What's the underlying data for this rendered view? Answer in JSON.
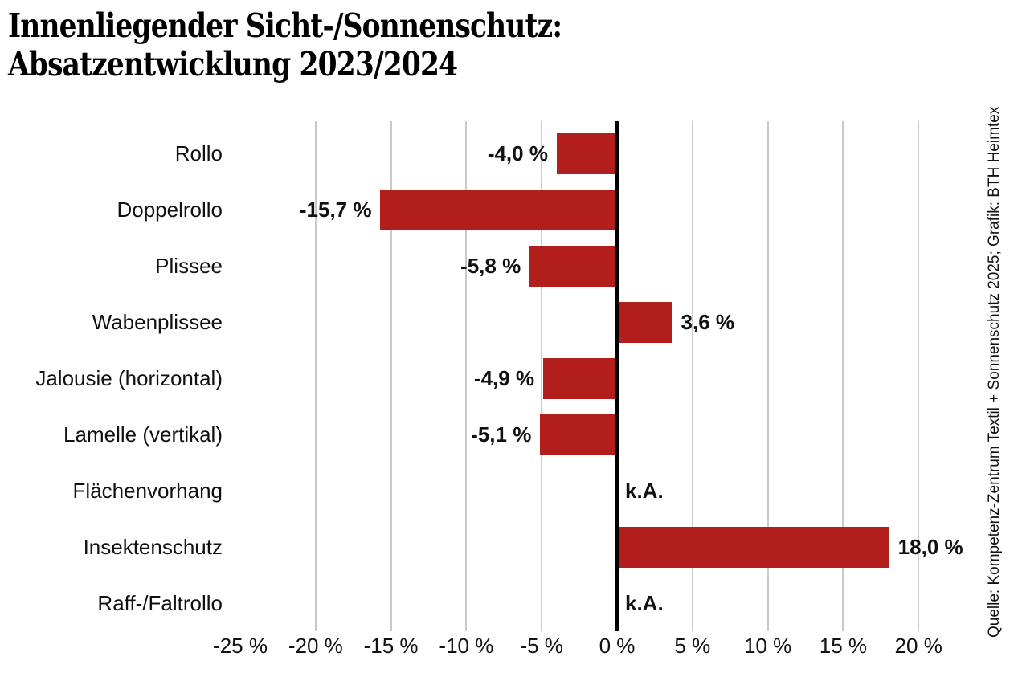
{
  "title": {
    "line1": "Innenliegender Sicht-/Sonnenschutz:",
    "line2": "Absatzentwicklung 2023/2024"
  },
  "source_credit": "Quelle: Kompetenz-Zentrum Textil + Sonnenschutz 2025; Grafik: BTH Heimtex",
  "colors": {
    "bar": "#b11e1c",
    "gridline": "#c9c9c9",
    "zero_line": "#000000",
    "text": "#111111"
  },
  "chart_data": {
    "type": "bar",
    "orientation": "horizontal",
    "title": "Innenliegender Sicht-/Sonnenschutz: Absatzentwicklung 2023/2024",
    "xlabel": "",
    "ylabel": "",
    "unit": "%",
    "legend": "none",
    "grid": "vertical gridlines every 5 % from -20 % to 20 %, bold black zero axis",
    "xlim": [
      -25,
      20
    ],
    "categories": [
      "Rollo",
      "Doppelrollo",
      "Plissee",
      "Wabenplissee",
      "Jalousie (horizontal)",
      "Lamelle (vertikal)",
      "Flächenvorhang",
      "Insektenschutz",
      "Raff-/Faltrollo"
    ],
    "values": [
      -4.0,
      -15.7,
      -5.8,
      3.6,
      -4.9,
      -5.1,
      null,
      18.0,
      null
    ],
    "value_labels": [
      "-4,0 %",
      "-15,7 %",
      "-5,8 %",
      "3,6 %",
      "-4,9 %",
      "-5,1 %",
      "k.A.",
      "18,0 %",
      "k.A."
    ],
    "no_data_text": "k.A.",
    "x_tick_values": [
      -25,
      -20,
      -15,
      -10,
      -5,
      0,
      5,
      10,
      15,
      20
    ],
    "x_tick_labels": [
      "-25 %",
      "-20 %",
      "-15 %",
      "-10 %",
      "-5 %",
      "0 %",
      "5 %",
      "10 %",
      "15 %",
      "20 %"
    ],
    "gridline_values": [
      -20,
      -15,
      -10,
      -5,
      5,
      10,
      15,
      20
    ]
  }
}
